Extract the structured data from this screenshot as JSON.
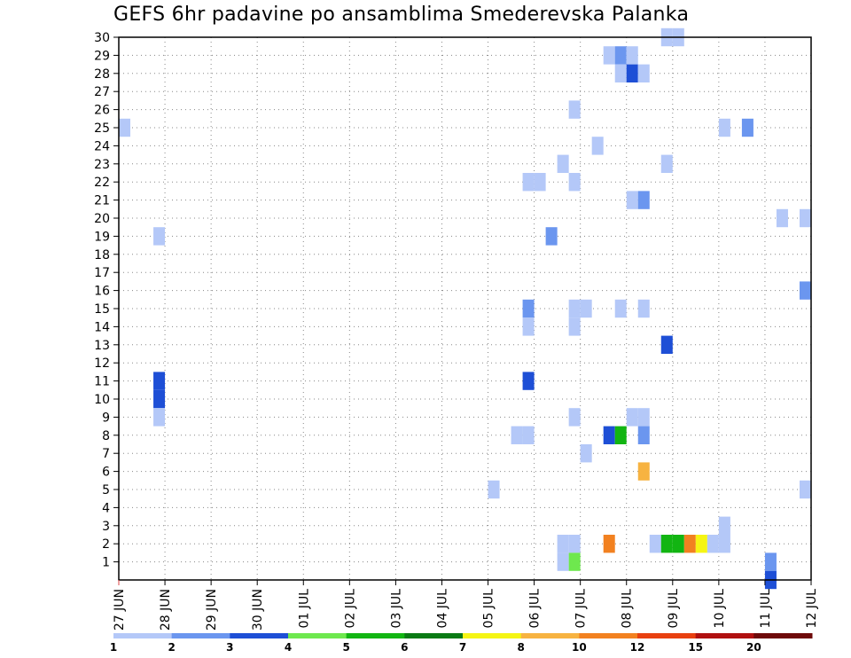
{
  "title": "GEFS 6hr padavine po ansamblima Smederevska Palanka",
  "chart_data": {
    "type": "heatmap",
    "title": "GEFS 6hr padavine po ansamblima Smederevska Palanka",
    "x_tick_labels": [
      "27 JUN",
      "28 JUN",
      "29 JUN",
      "30 JUN",
      "01 JUL",
      "02 JUL",
      "03 JUL",
      "04 JUL",
      "05 JUL",
      "06 JUL",
      "07 JUL",
      "08 JUL",
      "09 JUL",
      "10 JUL",
      "11 JUL",
      "12 JUL"
    ],
    "x_range_days": [
      0,
      15
    ],
    "y_tick_labels": [
      "1",
      "2",
      "3",
      "4",
      "5",
      "6",
      "7",
      "8",
      "9",
      "10",
      "11",
      "12",
      "13",
      "14",
      "15",
      "16",
      "17",
      "18",
      "19",
      "20",
      "21",
      "22",
      "23",
      "24",
      "25",
      "26",
      "27",
      "28",
      "29",
      "30"
    ],
    "y_range": [
      0,
      30
    ],
    "grid": "dotted",
    "colorbar": {
      "placement": "bottom",
      "boundary_labels": [
        "1",
        "2",
        "3",
        "4",
        "5",
        "6",
        "7",
        "8",
        "10",
        "12",
        "15",
        "20"
      ],
      "colors": [
        "#b4c8f8",
        "#6b96ef",
        "#1e4fd6",
        "#6ee84e",
        "#12b512",
        "#0a7a14",
        "#f5f514",
        "#f7b341",
        "#f28120",
        "#e84010",
        "#b01010",
        "#6e0a0a"
      ]
    },
    "member_cells": [
      {
        "member": 30,
        "day": 11.875,
        "bin": 1
      },
      {
        "member": 30,
        "day": 12.125,
        "bin": 1
      },
      {
        "member": 29,
        "day": 10.625,
        "bin": 1
      },
      {
        "member": 29,
        "day": 10.875,
        "bin": 2
      },
      {
        "member": 29,
        "day": 11.125,
        "bin": 1
      },
      {
        "member": 28,
        "day": 10.875,
        "bin": 1
      },
      {
        "member": 28,
        "day": 11.125,
        "bin": 3
      },
      {
        "member": 28,
        "day": 11.375,
        "bin": 1
      },
      {
        "member": 26,
        "day": 9.875,
        "bin": 1
      },
      {
        "member": 25,
        "day": 0.125,
        "bin": 1
      },
      {
        "member": 25,
        "day": 13.125,
        "bin": 1
      },
      {
        "member": 25,
        "day": 13.625,
        "bin": 2
      },
      {
        "member": 24,
        "day": 10.375,
        "bin": 1
      },
      {
        "member": 23,
        "day": 9.625,
        "bin": 1
      },
      {
        "member": 23,
        "day": 11.875,
        "bin": 1
      },
      {
        "member": 22,
        "day": 8.875,
        "bin": 1
      },
      {
        "member": 22,
        "day": 9.125,
        "bin": 1
      },
      {
        "member": 22,
        "day": 9.875,
        "bin": 1
      },
      {
        "member": 21,
        "day": 11.125,
        "bin": 1
      },
      {
        "member": 21,
        "day": 11.375,
        "bin": 2
      },
      {
        "member": 20,
        "day": 14.375,
        "bin": 1
      },
      {
        "member": 20,
        "day": 14.875,
        "bin": 1
      },
      {
        "member": 19,
        "day": 0.875,
        "bin": 1
      },
      {
        "member": 19,
        "day": 9.375,
        "bin": 2
      },
      {
        "member": 16,
        "day": 14.875,
        "bin": 2
      },
      {
        "member": 15,
        "day": 8.875,
        "bin": 2
      },
      {
        "member": 15,
        "day": 9.875,
        "bin": 1
      },
      {
        "member": 15,
        "day": 10.125,
        "bin": 1
      },
      {
        "member": 15,
        "day": 10.875,
        "bin": 1
      },
      {
        "member": 15,
        "day": 11.375,
        "bin": 1
      },
      {
        "member": 14,
        "day": 8.875,
        "bin": 1
      },
      {
        "member": 14,
        "day": 9.875,
        "bin": 1
      },
      {
        "member": 13,
        "day": 11.875,
        "bin": 3
      },
      {
        "member": 11,
        "day": 0.875,
        "bin": 3
      },
      {
        "member": 11,
        "day": 8.875,
        "bin": 3
      },
      {
        "member": 10,
        "day": 0.875,
        "bin": 3
      },
      {
        "member": 9,
        "day": 0.875,
        "bin": 1
      },
      {
        "member": 9,
        "day": 9.875,
        "bin": 1
      },
      {
        "member": 9,
        "day": 11.125,
        "bin": 1
      },
      {
        "member": 9,
        "day": 11.375,
        "bin": 1
      },
      {
        "member": 8,
        "day": 8.625,
        "bin": 1
      },
      {
        "member": 8,
        "day": 8.875,
        "bin": 1
      },
      {
        "member": 8,
        "day": 10.625,
        "bin": 3
      },
      {
        "member": 8,
        "day": 10.875,
        "bin": 5
      },
      {
        "member": 8,
        "day": 11.375,
        "bin": 2
      },
      {
        "member": 7,
        "day": 10.125,
        "bin": 1
      },
      {
        "member": 6,
        "day": 11.375,
        "bin": 8
      },
      {
        "member": 5,
        "day": 8.125,
        "bin": 1
      },
      {
        "member": 5,
        "day": 14.875,
        "bin": 1
      },
      {
        "member": 3,
        "day": 13.125,
        "bin": 1
      },
      {
        "member": 2,
        "day": 9.625,
        "bin": 1
      },
      {
        "member": 2,
        "day": 9.875,
        "bin": 1
      },
      {
        "member": 2,
        "day": 10.625,
        "bin": 9
      },
      {
        "member": 2,
        "day": 11.625,
        "bin": 1
      },
      {
        "member": 2,
        "day": 11.875,
        "bin": 5
      },
      {
        "member": 2,
        "day": 12.125,
        "bin": 5
      },
      {
        "member": 2,
        "day": 12.375,
        "bin": 9
      },
      {
        "member": 2,
        "day": 12.625,
        "bin": 7
      },
      {
        "member": 2,
        "day": 12.875,
        "bin": 1
      },
      {
        "member": 2,
        "day": 13.125,
        "bin": 1
      },
      {
        "member": 1,
        "day": 9.625,
        "bin": 1
      },
      {
        "member": 1,
        "day": 9.875,
        "bin": 4
      },
      {
        "member": 1,
        "day": 14.125,
        "bin": 2
      },
      {
        "member": 0,
        "day": 14.125,
        "bin": 3
      }
    ]
  }
}
